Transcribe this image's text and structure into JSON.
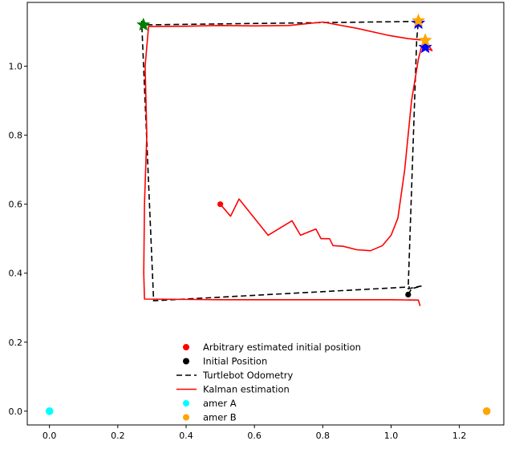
{
  "chart_data": {
    "type": "scatter",
    "xlim": [
      -0.065,
      1.33
    ],
    "ylim": [
      -0.04,
      1.185
    ],
    "x_ticks": [
      0.0,
      0.2,
      0.4,
      0.6,
      0.8,
      1.0,
      1.2
    ],
    "x_tick_labels": [
      "0.0",
      "0.2",
      "0.4",
      "0.6",
      "0.8",
      "1.0",
      "1.2"
    ],
    "y_ticks": [
      0.0,
      0.2,
      0.4,
      0.6,
      0.8,
      1.0
    ],
    "y_tick_labels": [
      "0.0",
      "0.2",
      "0.4",
      "0.6",
      "0.8",
      "1.0"
    ],
    "grid": false,
    "legend_position": "bottom-center",
    "series": [
      {
        "name": "Arbitrary estimated initial position",
        "kind": "point",
        "color": "#ff0000",
        "points": [
          [
            0.5,
            0.6
          ]
        ]
      },
      {
        "name": "Initial Position",
        "kind": "point",
        "color": "#000000",
        "points": [
          [
            1.05,
            0.338
          ]
        ]
      },
      {
        "name": "Turtlebot Odometry",
        "kind": "dashed-line",
        "color": "#000000",
        "points": [
          [
            1.05,
            0.338
          ],
          [
            1.06,
            0.355
          ],
          [
            1.09,
            0.363
          ],
          [
            1.05,
            0.355
          ],
          [
            1.075,
            1.075
          ],
          [
            1.08,
            1.13
          ],
          [
            0.28,
            1.12
          ],
          [
            0.27,
            1.13
          ],
          [
            0.305,
            0.32
          ],
          [
            1.055,
            0.36
          ]
        ]
      },
      {
        "name": "Kalman estimation",
        "kind": "line",
        "color": "#ff0000",
        "points": [
          [
            0.5,
            0.6
          ],
          [
            0.53,
            0.565
          ],
          [
            0.555,
            0.615
          ],
          [
            0.64,
            0.51
          ],
          [
            0.71,
            0.552
          ],
          [
            0.735,
            0.51
          ],
          [
            0.78,
            0.528
          ],
          [
            0.795,
            0.5
          ],
          [
            0.82,
            0.5
          ],
          [
            0.83,
            0.48
          ],
          [
            0.86,
            0.478
          ],
          [
            0.9,
            0.468
          ],
          [
            0.94,
            0.465
          ],
          [
            0.975,
            0.48
          ],
          [
            1.0,
            0.51
          ],
          [
            1.02,
            0.56
          ],
          [
            1.04,
            0.7
          ],
          [
            1.06,
            0.9
          ],
          [
            1.08,
            1.02
          ],
          [
            1.09,
            1.06
          ],
          [
            1.12,
            1.045
          ],
          [
            1.1,
            1.075
          ],
          [
            1.05,
            1.08
          ],
          [
            0.99,
            1.09
          ],
          [
            0.9,
            1.11
          ],
          [
            0.8,
            1.128
          ],
          [
            0.7,
            1.118
          ],
          [
            0.6,
            1.117
          ],
          [
            0.5,
            1.118
          ],
          [
            0.4,
            1.116
          ],
          [
            0.29,
            1.115
          ],
          [
            0.28,
            1.0
          ],
          [
            0.285,
            0.8
          ],
          [
            0.278,
            0.6
          ],
          [
            0.276,
            0.4
          ],
          [
            0.278,
            0.325
          ],
          [
            0.5,
            0.323
          ],
          [
            0.8,
            0.323
          ],
          [
            1.0,
            0.323
          ],
          [
            1.08,
            0.322
          ],
          [
            1.085,
            0.305
          ]
        ]
      },
      {
        "name": "amer A",
        "kind": "point",
        "color": "#00ffff",
        "points": [
          [
            0.0,
            0.0
          ]
        ]
      },
      {
        "name": "amer B",
        "kind": "point",
        "color": "#ffa500",
        "points": [
          [
            1.28,
            0.0
          ]
        ]
      }
    ],
    "markers": [
      {
        "shape": "star",
        "color": "#008000",
        "x": 0.275,
        "y": 1.12
      },
      {
        "shape": "star",
        "color": "#0000ff",
        "x": 1.08,
        "y": 1.125
      },
      {
        "shape": "star",
        "color": "#ffa500",
        "x": 1.08,
        "y": 1.132
      },
      {
        "shape": "star",
        "color": "#0000ff",
        "x": 1.1,
        "y": 1.055
      },
      {
        "shape": "star",
        "color": "#ffa500",
        "x": 1.1,
        "y": 1.075
      }
    ]
  }
}
